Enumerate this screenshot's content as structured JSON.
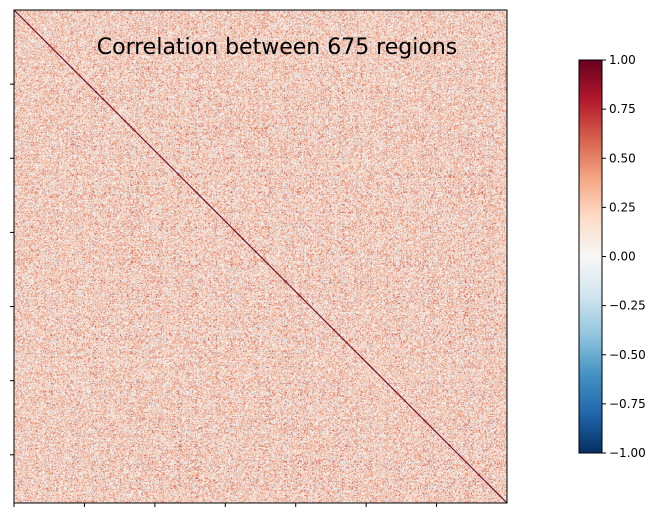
{
  "chart_data": {
    "type": "heatmap",
    "title": "Correlation between 675 regions",
    "n_regions": 675,
    "matrix_description": "675x675 correlation matrix; diagonal = 1.0",
    "diagonal_value": 1.0,
    "xlabel": "",
    "ylabel": "",
    "x_tick_labels": [],
    "y_tick_labels": [],
    "x_tick_count": 7,
    "y_tick_count": 6,
    "colormap": "RdBu_r",
    "color_stops": [
      "#053061",
      "#2166ac",
      "#4393c3",
      "#92c5de",
      "#d1e5f0",
      "#f7f7f7",
      "#fddbc7",
      "#f4a582",
      "#d6604d",
      "#b2182b",
      "#67001f"
    ],
    "colorbar": {
      "vmin": -1.0,
      "vmax": 1.0,
      "ticks": [
        1.0,
        0.75,
        0.5,
        0.25,
        0.0,
        -0.25,
        -0.5,
        -0.75,
        -1.0
      ],
      "tick_labels": [
        "1.00",
        "0.75",
        "0.50",
        "0.25",
        "0.00",
        "−0.25",
        "−0.50",
        "−0.75",
        "−1.00"
      ]
    },
    "grid": false,
    "legend": "colorbar-right"
  }
}
